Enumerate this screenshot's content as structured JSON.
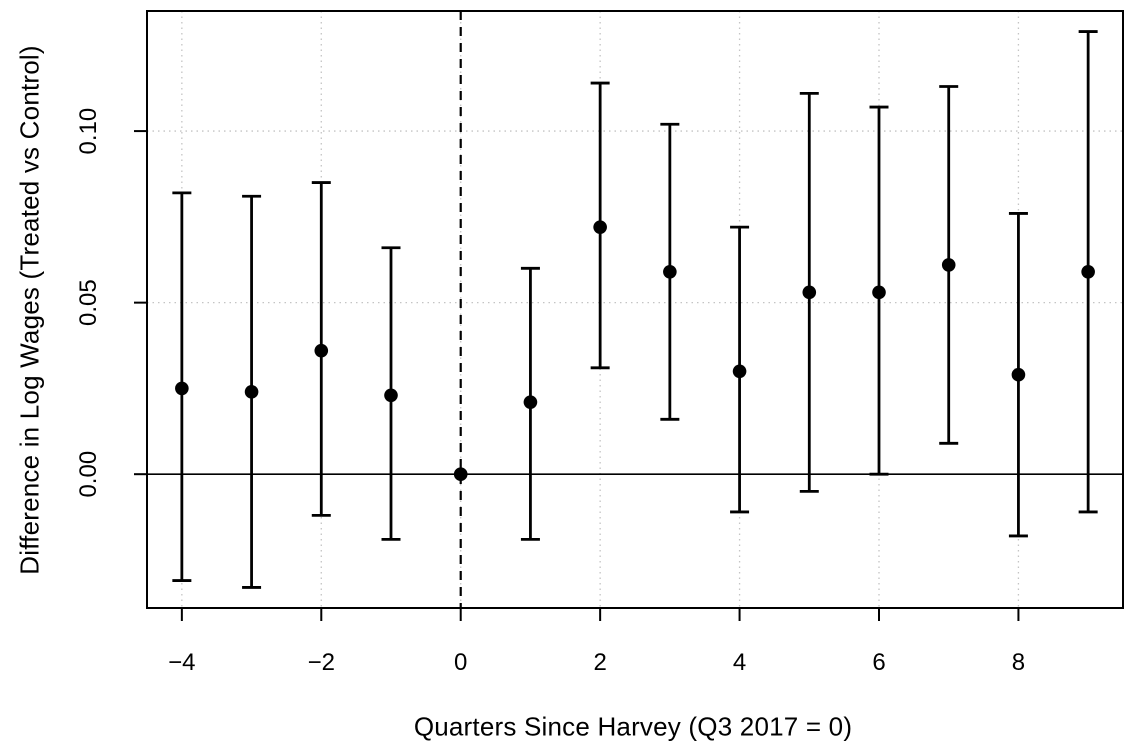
{
  "figure": {
    "background": "#ffffff"
  },
  "chart_data": {
    "type": "scatter",
    "subtype": "event-study-error-bars",
    "title": "",
    "xlabel": "Quarters Since Harvey (Q3 2017 = 0)",
    "ylabel": "Difference in Log Wages (Treated vs Control)",
    "x": [
      -4,
      -3,
      -2,
      -1,
      0,
      1,
      2,
      3,
      4,
      5,
      6,
      7,
      8,
      9
    ],
    "estimates": [
      0.025,
      0.024,
      0.036,
      0.023,
      0.0,
      0.021,
      0.072,
      0.059,
      0.03,
      0.053,
      0.053,
      0.061,
      0.029,
      0.059
    ],
    "ci_lower": [
      -0.031,
      -0.033,
      -0.012,
      -0.019,
      null,
      -0.019,
      0.031,
      0.016,
      -0.011,
      -0.005,
      0.0,
      0.009,
      -0.018,
      -0.011
    ],
    "ci_upper": [
      0.082,
      0.081,
      0.085,
      0.066,
      null,
      0.06,
      0.114,
      0.102,
      0.072,
      0.111,
      0.107,
      0.113,
      0.076,
      0.129
    ],
    "reference_x": 0,
    "event_line_x": 0,
    "zero_line_y": 0,
    "x_ticks": [
      -4,
      -2,
      0,
      2,
      4,
      6,
      8
    ],
    "x_tick_labels": [
      "−4",
      "−2",
      "0",
      "2",
      "4",
      "6",
      "8"
    ],
    "y_ticks": [
      0.0,
      0.05,
      0.1
    ],
    "y_tick_labels": [
      "0.00",
      "0.05",
      "0.10"
    ],
    "xlim": [
      -4.5,
      9.5
    ],
    "ylim": [
      -0.039,
      0.135
    ],
    "grid": true,
    "grid_style": "dotted",
    "legend": null,
    "colors": {
      "foreground": "#000000",
      "grid": "#c4c4c4",
      "background": "#ffffff"
    }
  }
}
